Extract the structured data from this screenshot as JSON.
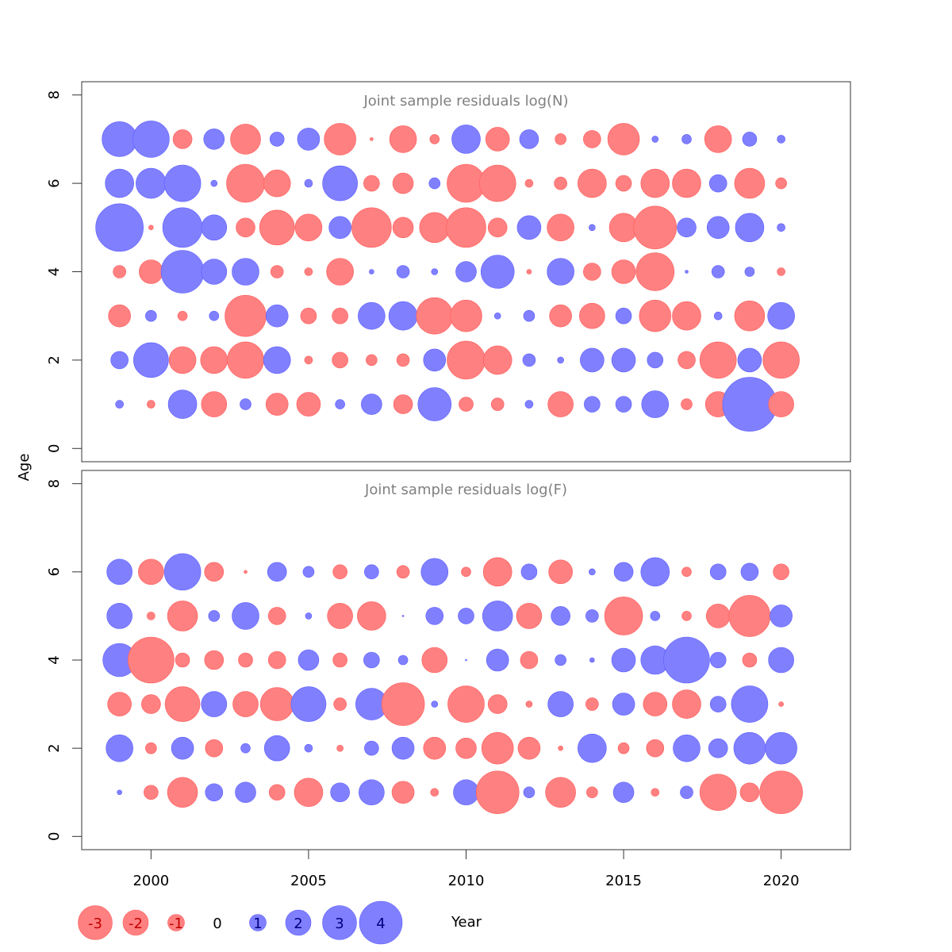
{
  "chart_data": {
    "type": "scatter",
    "subtype": "bubble",
    "ylabel": "Age",
    "xlabel": "Year",
    "xlim": [
      1997.8,
      2022.2
    ],
    "x_ticks": [
      2000,
      2005,
      2010,
      2015,
      2020
    ],
    "y_ticks": [
      0,
      2,
      4,
      6,
      8
    ],
    "years": [
      1999,
      2000,
      2001,
      2002,
      2003,
      2004,
      2005,
      2006,
      2007,
      2008,
      2009,
      2010,
      2011,
      2012,
      2013,
      2014,
      2015,
      2016,
      2017,
      2018,
      2019,
      2020
    ],
    "colors": {
      "negative": "#ff8080",
      "positive": "#8080ff",
      "negative_stroke": "#ff5c5c",
      "positive_stroke": "#5c5cff"
    },
    "legend": {
      "values": [
        -3,
        -2,
        -1,
        0,
        1,
        2,
        3,
        4
      ],
      "labels": [
        "-3",
        "-2",
        "-1",
        "0",
        "1",
        "2",
        "3",
        "4"
      ],
      "label_colors": {
        "negative": "#c00000",
        "zero": "#000000",
        "positive": "#000080"
      }
    },
    "panels": [
      {
        "title": "Joint sample residuals log(N)",
        "ylim": [
          -0.3,
          8.3
        ],
        "ages": [
          7,
          6,
          5,
          4,
          3,
          2,
          1
        ],
        "residuals": [
          [
            2.2,
            2.3,
            -1.2,
            1.3,
            -1.9,
            0.9,
            1.4,
            -2.0,
            -0.2,
            -1.7,
            -0.6,
            1.8,
            -1.5,
            1.2,
            -0.7,
            -1.1,
            -2.0,
            0.4,
            0.6,
            -1.7,
            0.9,
            0.5
          ],
          [
            1.8,
            1.9,
            2.3,
            0.4,
            -2.4,
            -1.7,
            0.5,
            2.2,
            -1.0,
            -1.3,
            0.7,
            -2.4,
            -2.3,
            -0.5,
            -0.8,
            -1.8,
            -1.0,
            -1.8,
            -1.8,
            1.1,
            -1.9,
            -0.7
          ],
          [
            3.0,
            -0.3,
            2.5,
            1.6,
            -1.2,
            -2.2,
            -1.7,
            1.4,
            -2.5,
            -1.3,
            -1.9,
            -2.5,
            -1.2,
            1.5,
            -1.7,
            0.4,
            -1.8,
            -2.7,
            1.2,
            1.4,
            1.8,
            0.5
          ],
          [
            -0.8,
            -1.5,
            2.7,
            1.6,
            1.7,
            -0.8,
            -0.5,
            -1.7,
            0.3,
            0.8,
            0.4,
            1.3,
            2.1,
            -0.3,
            1.7,
            -1.1,
            -1.5,
            -2.4,
            0.2,
            0.8,
            0.6,
            -0.5
          ],
          [
            -1.4,
            0.7,
            -0.6,
            0.6,
            -2.6,
            1.4,
            -1.0,
            -1.0,
            1.7,
            1.8,
            -2.3,
            -2.0,
            0.4,
            0.7,
            -1.4,
            -1.6,
            1.0,
            -2.0,
            -1.8,
            0.5,
            -1.9,
            1.7
          ],
          [
            1.1,
            2.2,
            -1.7,
            -1.7,
            -2.3,
            1.7,
            -0.5,
            -1.0,
            -0.7,
            -0.8,
            1.4,
            -2.4,
            -1.8,
            0.8,
            0.4,
            1.5,
            1.5,
            1.0,
            -1.1,
            -2.3,
            1.5,
            -2.3
          ],
          [
            0.5,
            -0.5,
            1.8,
            -1.6,
            0.7,
            -1.4,
            -1.5,
            0.6,
            1.3,
            -1.2,
            2.1,
            -0.9,
            -0.8,
            0.5,
            -1.6,
            1.0,
            1.0,
            1.7,
            -0.7,
            -1.6,
            3.4,
            -1.6
          ]
        ]
      },
      {
        "title": "Joint sample residuals log(F)",
        "ylim": [
          -0.3,
          8.3
        ],
        "ages": [
          6,
          5,
          4,
          3,
          2,
          1
        ],
        "residuals": [
          [
            1.6,
            -1.6,
            2.3,
            -1.2,
            -0.2,
            1.2,
            0.7,
            -0.9,
            0.9,
            -0.8,
            1.7,
            -0.6,
            -1.8,
            1.0,
            -1.5,
            0.4,
            1.2,
            1.8,
            -0.6,
            1.0,
            1.1,
            -1.0
          ],
          [
            1.6,
            -0.5,
            -1.9,
            0.7,
            1.7,
            -1.1,
            0.4,
            -1.6,
            -1.8,
            0.1,
            1.1,
            1.0,
            1.9,
            -1.6,
            1.2,
            0.8,
            -2.4,
            0.6,
            -0.6,
            -1.5,
            -2.6,
            1.4
          ],
          [
            2.1,
            -2.9,
            -0.9,
            -1.2,
            -0.9,
            -1.1,
            1.3,
            -0.9,
            1.0,
            0.6,
            -1.6,
            0.1,
            1.4,
            -1.1,
            0.7,
            0.3,
            1.5,
            1.8,
            2.9,
            1.0,
            -0.9,
            1.6
          ],
          [
            -1.5,
            -1.2,
            -2.2,
            1.6,
            -1.6,
            -2.1,
            2.2,
            -0.8,
            2.0,
            -2.7,
            0.4,
            -2.3,
            -1.2,
            -0.4,
            1.6,
            -0.8,
            1.4,
            -1.5,
            -1.8,
            1.0,
            2.3,
            -0.3
          ],
          [
            1.7,
            -0.7,
            1.4,
            -1.1,
            0.6,
            1.6,
            0.5,
            -0.4,
            0.9,
            1.4,
            -1.4,
            -1.3,
            -2.0,
            -1.4,
            -0.3,
            1.8,
            -0.7,
            -1.1,
            1.7,
            1.2,
            2.0,
            2.0
          ],
          [
            0.3,
            -0.9,
            -1.9,
            1.1,
            1.3,
            -1.0,
            -1.8,
            1.2,
            1.6,
            -1.4,
            -0.5,
            1.6,
            -2.7,
            0.7,
            -1.9,
            -0.7,
            1.3,
            -0.5,
            0.8,
            -2.3,
            -1.2,
            -2.7
          ]
        ]
      }
    ]
  }
}
